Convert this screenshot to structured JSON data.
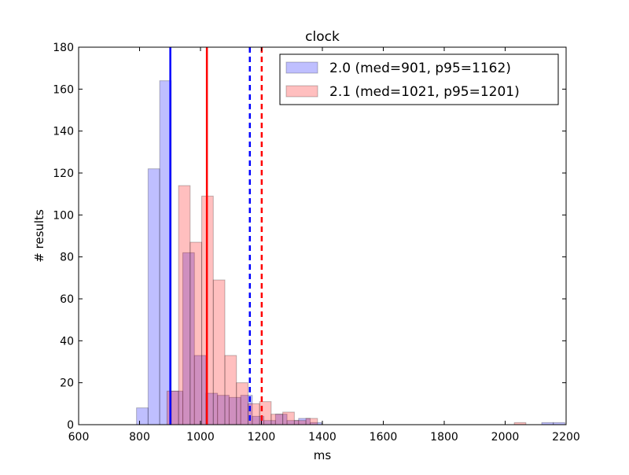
{
  "chart_data": {
    "type": "histogram",
    "title": "clock",
    "xlabel": "ms",
    "ylabel": "# results",
    "xlim": [
      600,
      2200
    ],
    "ylim": [
      0,
      180
    ],
    "xticks": [
      600,
      800,
      1000,
      1200,
      1400,
      1600,
      1800,
      2000,
      2200
    ],
    "yticks": [
      0,
      20,
      40,
      60,
      80,
      100,
      120,
      140,
      160,
      180
    ],
    "grid": false,
    "legend_position": "top-right",
    "series": [
      {
        "name": "2.0 (med=901, p95=1162)",
        "color": "#0000ff",
        "bin_width": 38,
        "bins": [
          {
            "x0": 790,
            "x1": 828,
            "count": 8
          },
          {
            "x0": 828,
            "x1": 866,
            "count": 122
          },
          {
            "x0": 866,
            "x1": 904,
            "count": 164
          },
          {
            "x0": 904,
            "x1": 942,
            "count": 16
          },
          {
            "x0": 942,
            "x1": 980,
            "count": 82
          },
          {
            "x0": 980,
            "x1": 1018,
            "count": 33
          },
          {
            "x0": 1018,
            "x1": 1056,
            "count": 15
          },
          {
            "x0": 1056,
            "x1": 1094,
            "count": 14
          },
          {
            "x0": 1094,
            "x1": 1132,
            "count": 13
          },
          {
            "x0": 1132,
            "x1": 1170,
            "count": 14
          },
          {
            "x0": 1170,
            "x1": 1208,
            "count": 4
          },
          {
            "x0": 1208,
            "x1": 1246,
            "count": 2
          },
          {
            "x0": 1246,
            "x1": 1284,
            "count": 5
          },
          {
            "x0": 1284,
            "x1": 1322,
            "count": 2
          },
          {
            "x0": 1322,
            "x1": 1360,
            "count": 3
          },
          {
            "x0": 1360,
            "x1": 1398,
            "count": 1
          },
          {
            "x0": 2120,
            "x1": 2158,
            "count": 1
          },
          {
            "x0": 2158,
            "x1": 2196,
            "count": 1
          }
        ],
        "median": 901,
        "p95": 1162
      },
      {
        "name": "2.1 (med=1021, p95=1201)",
        "color": "#ff0000",
        "bin_width": 38,
        "bins": [
          {
            "x0": 890,
            "x1": 928,
            "count": 16
          },
          {
            "x0": 928,
            "x1": 966,
            "count": 114
          },
          {
            "x0": 966,
            "x1": 1004,
            "count": 87
          },
          {
            "x0": 1004,
            "x1": 1042,
            "count": 109
          },
          {
            "x0": 1042,
            "x1": 1080,
            "count": 69
          },
          {
            "x0": 1080,
            "x1": 1118,
            "count": 33
          },
          {
            "x0": 1118,
            "x1": 1156,
            "count": 20
          },
          {
            "x0": 1156,
            "x1": 1194,
            "count": 10
          },
          {
            "x0": 1194,
            "x1": 1232,
            "count": 11
          },
          {
            "x0": 1232,
            "x1": 1270,
            "count": 5
          },
          {
            "x0": 1270,
            "x1": 1308,
            "count": 6
          },
          {
            "x0": 1308,
            "x1": 1346,
            "count": 2
          },
          {
            "x0": 1346,
            "x1": 1384,
            "count": 3
          },
          {
            "x0": 2030,
            "x1": 2068,
            "count": 1
          }
        ],
        "median": 1021,
        "p95": 1201
      }
    ]
  }
}
